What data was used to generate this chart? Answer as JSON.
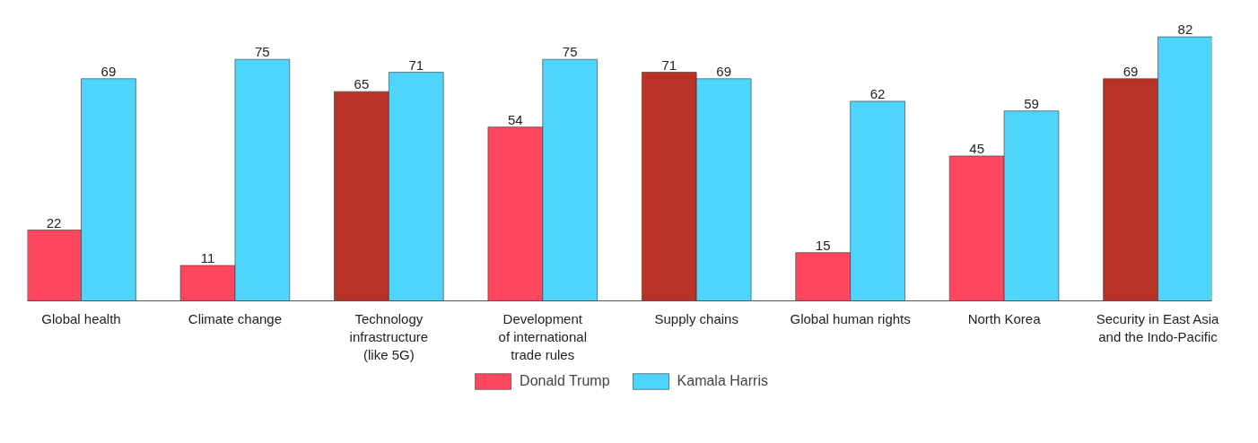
{
  "chart_data": {
    "type": "bar",
    "categories": [
      "Global health",
      "Climate change",
      "Technology\ninfrastructure\n(like 5G)",
      "Development\nof international\ntrade rules",
      "Supply chains",
      "Global human rights",
      "North Korea",
      "Security in East Asia\nand the Indo-Pacific"
    ],
    "series": [
      {
        "name": "Donald Trump",
        "color": "#ff4860",
        "colors": [
          "#ff4860",
          "#ff4860",
          "#b83228",
          "#ff4860",
          "#b83228",
          "#ff4860",
          "#ff4860",
          "#b83228"
        ],
        "values": [
          22,
          11,
          65,
          54,
          71,
          15,
          45,
          69
        ]
      },
      {
        "name": "Kamala Harris",
        "color": "#4fd5fb",
        "values": [
          69,
          75,
          71,
          75,
          69,
          62,
          59,
          82
        ]
      }
    ],
    "data_labels": true,
    "legend": "bottom",
    "grid": false
  }
}
